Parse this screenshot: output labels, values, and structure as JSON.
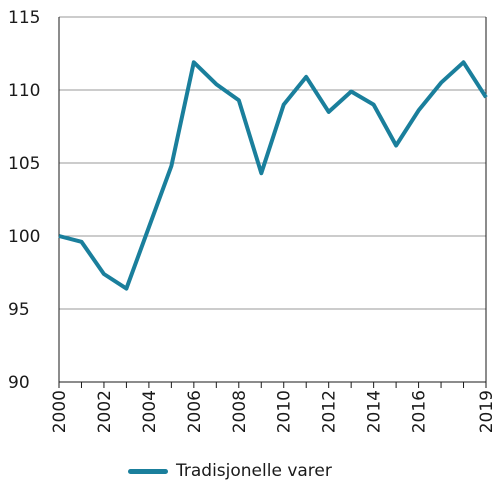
{
  "chart_data": {
    "type": "line",
    "x": [
      2000,
      2001,
      2002,
      2003,
      2004,
      2005,
      2006,
      2007,
      2008,
      2009,
      2010,
      2011,
      2012,
      2013,
      2014,
      2015,
      2016,
      2017,
      2018,
      2019
    ],
    "series": [
      {
        "name": "Tradisjonelle varer",
        "color": "#1a7f9c",
        "values": [
          100.0,
          99.6,
          97.4,
          96.4,
          100.6,
          104.8,
          111.9,
          110.4,
          109.3,
          104.3,
          109.0,
          110.9,
          108.5,
          109.9,
          109.0,
          106.2,
          108.6,
          110.5,
          111.9,
          109.5
        ]
      }
    ],
    "xticks": [
      "2000",
      "2002",
      "2004",
      "2006",
      "2008",
      "2010",
      "2012",
      "2014",
      "2016",
      "2019"
    ],
    "yticks": [
      "90",
      "95",
      "100",
      "105",
      "110",
      "115"
    ],
    "xlim": [
      2000,
      2019
    ],
    "ylim": [
      90,
      115
    ],
    "grid": "horizontal",
    "legend_position": "bottom-center",
    "title": "",
    "xlabel": "",
    "ylabel": ""
  }
}
